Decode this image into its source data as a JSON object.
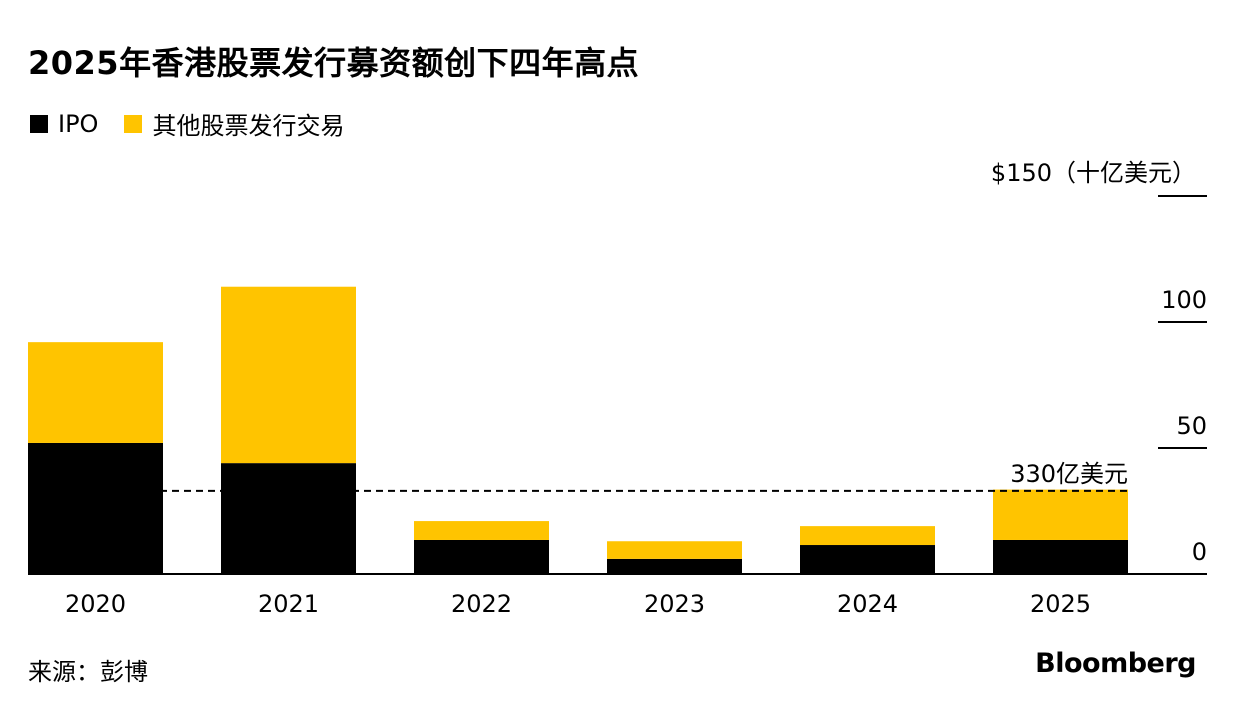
{
  "title": "2025年香港股票发行募资额创下四年高点",
  "legend": [
    {
      "label": "IPO",
      "color": "#000000"
    },
    {
      "label": "其他股票发行交易",
      "color": "#FFC400"
    }
  ],
  "unit_label": "$150（十亿美元）",
  "source": "来源：彭博",
  "brand": "Bloomberg",
  "chart_data": {
    "type": "bar",
    "stacked": true,
    "categories": [
      "2020",
      "2021",
      "2022",
      "2023",
      "2024",
      "2025"
    ],
    "series": [
      {
        "name": "IPO",
        "color": "#000000",
        "values": [
          52,
          44,
          13.5,
          6,
          11.5,
          13.5
        ]
      },
      {
        "name": "其他股票发行交易",
        "color": "#FFC400",
        "values": [
          40,
          70,
          7.5,
          7,
          7.5,
          20
        ]
      }
    ],
    "ylim": [
      0,
      150
    ],
    "yticks": [
      0,
      50,
      100,
      150
    ],
    "ytick_labels": [
      "0",
      "50",
      "100",
      ""
    ],
    "reference_line": {
      "value": 33,
      "label": "330亿美元",
      "style": "dashed"
    },
    "grid": false
  }
}
